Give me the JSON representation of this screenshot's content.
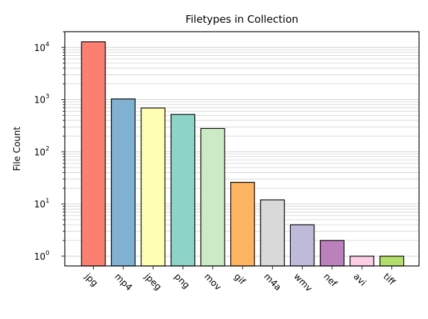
{
  "chart_data": {
    "type": "bar",
    "title": "Filetypes in Collection",
    "xlabel": "",
    "ylabel": "File Count",
    "yscale": "log",
    "ylim": [
      0.65,
      20000
    ],
    "grid": "y-major-and-minor",
    "legend": "none",
    "categories": [
      "jpg",
      "mp4",
      "jpeg",
      "png",
      "mov",
      "gif",
      "m4a",
      "wmv",
      "nef",
      "avi",
      "tiff"
    ],
    "values": [
      12800,
      1030,
      690,
      520,
      280,
      26,
      12,
      4,
      2,
      1,
      1
    ],
    "colors": [
      "#fb8072",
      "#80b1d3",
      "#ffffb3",
      "#8dd3c7",
      "#ccebc5",
      "#fdb462",
      "#d9d9d9",
      "#bebada",
      "#bc80bd",
      "#fccde5",
      "#b3de69"
    ],
    "ytick_labels": [
      {
        "base": "10",
        "exp": "0"
      },
      {
        "base": "10",
        "exp": "1"
      },
      {
        "base": "10",
        "exp": "2"
      },
      {
        "base": "10",
        "exp": "3"
      },
      {
        "base": "10",
        "exp": "4"
      }
    ]
  }
}
